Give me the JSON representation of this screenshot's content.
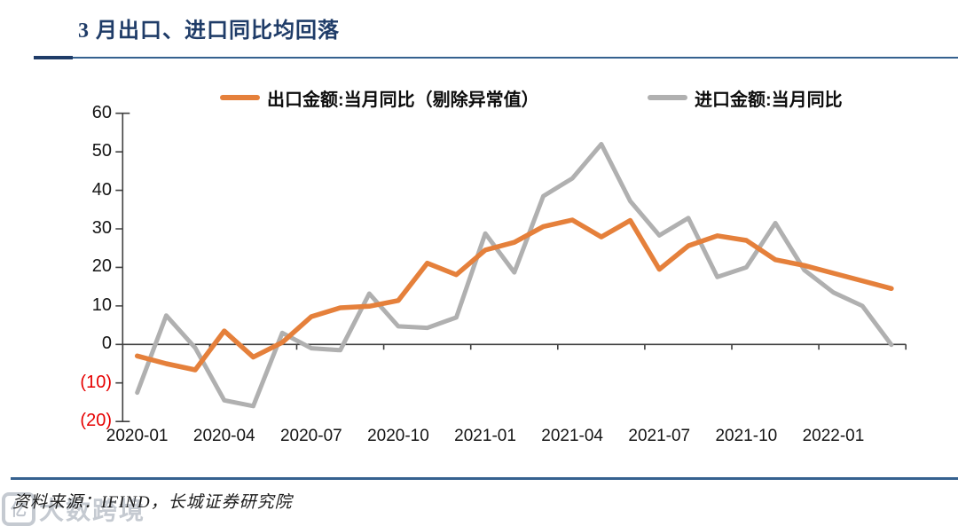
{
  "header": {
    "title": "3 月出口、进口同比均回落"
  },
  "legend": [
    {
      "label": "出口金额:当月同比（剔除异常值）",
      "color": "#E5803B"
    },
    {
      "label": "进口金额:当月同比",
      "color": "#B0B0B0"
    }
  ],
  "footer": {
    "source_text": "资料来源：IFIND，长城证券研究院"
  },
  "watermark": {
    "text": "大数跨境",
    "logo_glyph": "亿"
  },
  "colors": {
    "title_navy": "#1F3C68",
    "rule_blue": "#35618F",
    "negative_tick_red": "#E60000",
    "axis_gray": "#404040"
  },
  "chart_data": {
    "type": "line",
    "title": "3 月出口、进口同比均回落",
    "xlabel": "",
    "ylabel": "",
    "ylim": [
      -20,
      60
    ],
    "ytick_step": 10,
    "grid": false,
    "legend_position": "top",
    "x": [
      "2020-01",
      "2020-02",
      "2020-03",
      "2020-04",
      "2020-05",
      "2020-06",
      "2020-07",
      "2020-08",
      "2020-09",
      "2020-10",
      "2020-11",
      "2020-12",
      "2021-01",
      "2021-02",
      "2021-03",
      "2021-04",
      "2021-05",
      "2021-06",
      "2021-07",
      "2021-08",
      "2021-09",
      "2021-10",
      "2021-11",
      "2021-12",
      "2022-01",
      "2022-02",
      "2022-03"
    ],
    "x_tick_labels": [
      "2020-01",
      "2020-04",
      "2020-07",
      "2020-10",
      "2021-01",
      "2021-04",
      "2021-07",
      "2021-10",
      "2022-01"
    ],
    "series": [
      {
        "name": "出口金额:当月同比（剔除异常值）",
        "color": "#E5803B",
        "values": [
          -3,
          -5,
          -6.6,
          3.5,
          -3.3,
          0.5,
          7.2,
          9.5,
          9.9,
          11.4,
          21.1,
          18.1,
          24.5,
          26.5,
          30.6,
          32.3,
          27.9,
          32.2,
          19.5,
          25.6,
          28.2,
          27,
          22,
          20.5,
          18.5,
          16.5,
          14.5
        ]
      },
      {
        "name": "进口金额:当月同比",
        "color": "#B0B0B0",
        "values": [
          -12.5,
          7.5,
          -0.9,
          -14.5,
          -16,
          3,
          -1,
          -1.5,
          13.2,
          4.7,
          4.3,
          7,
          28.8,
          18.7,
          38.5,
          43.1,
          52,
          37.2,
          28.3,
          32.8,
          17.5,
          20,
          31.5,
          19.3,
          13.5,
          10,
          -0.1
        ]
      }
    ]
  }
}
